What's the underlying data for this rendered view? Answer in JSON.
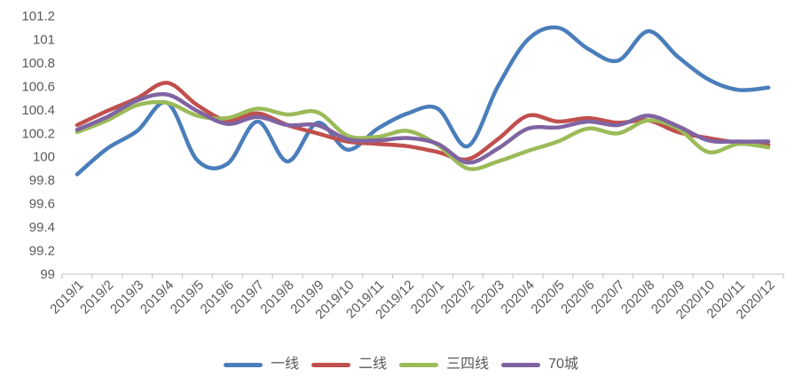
{
  "chart": {
    "title": ""
  },
  "chart_data": {
    "type": "line",
    "smoothed": true,
    "categories": [
      "2019/1",
      "2019/2",
      "2019/3",
      "2019/4",
      "2019/5",
      "2019/6",
      "2019/7",
      "2019/8",
      "2019/9",
      "2019/10",
      "2019/11",
      "2019/12",
      "2020/1",
      "2020/2",
      "2020/3",
      "2020/4",
      "2020/5",
      "2020/6",
      "2020/7",
      "2020/8",
      "2020/9",
      "2020/10",
      "2020/11",
      "2020/12"
    ],
    "series": [
      {
        "name": "一线",
        "color": "#4a7ebb",
        "values": [
          99.85,
          100.07,
          100.22,
          100.46,
          99.97,
          99.94,
          100.3,
          99.96,
          100.29,
          100.06,
          100.24,
          100.37,
          100.41,
          100.09,
          100.6,
          101.0,
          101.1,
          100.92,
          100.82,
          101.07,
          100.85,
          100.66,
          100.57,
          100.59
        ]
      },
      {
        "name": "二线",
        "color": "#c0504d",
        "values": [
          100.27,
          100.39,
          100.5,
          100.63,
          100.44,
          100.31,
          100.37,
          100.27,
          100.2,
          100.13,
          100.11,
          100.09,
          100.04,
          99.98,
          100.15,
          100.35,
          100.3,
          100.33,
          100.29,
          100.31,
          100.21,
          100.16,
          100.12,
          100.1
        ]
      },
      {
        "name": "三四线",
        "color": "#9bbb59",
        "values": [
          100.21,
          100.31,
          100.44,
          100.46,
          100.35,
          100.33,
          100.41,
          100.36,
          100.38,
          100.18,
          100.17,
          100.22,
          100.1,
          99.9,
          99.96,
          100.05,
          100.13,
          100.24,
          100.2,
          100.31,
          100.24,
          100.04,
          100.11,
          100.08
        ]
      },
      {
        "name": "70城",
        "color": "#8064a2",
        "values": [
          100.23,
          100.34,
          100.48,
          100.53,
          100.39,
          100.28,
          100.34,
          100.27,
          100.27,
          100.15,
          100.14,
          100.16,
          100.11,
          99.95,
          100.07,
          100.24,
          100.25,
          100.3,
          100.27,
          100.35,
          100.26,
          100.14,
          100.13,
          100.13
        ]
      }
    ],
    "ylim": [
      99,
      101.2
    ],
    "ytick_labels": [
      "101.2",
      "101",
      "100.8",
      "100.6",
      "100.4",
      "100.2",
      "100",
      "99.8",
      "99.6",
      "99.4",
      "99.2",
      "99"
    ],
    "grid": false,
    "legend_position": "bottom",
    "axis_text_color": "#595959",
    "axis_line_color": "#d6d6d6",
    "tick_color": "#c9c9c9"
  }
}
